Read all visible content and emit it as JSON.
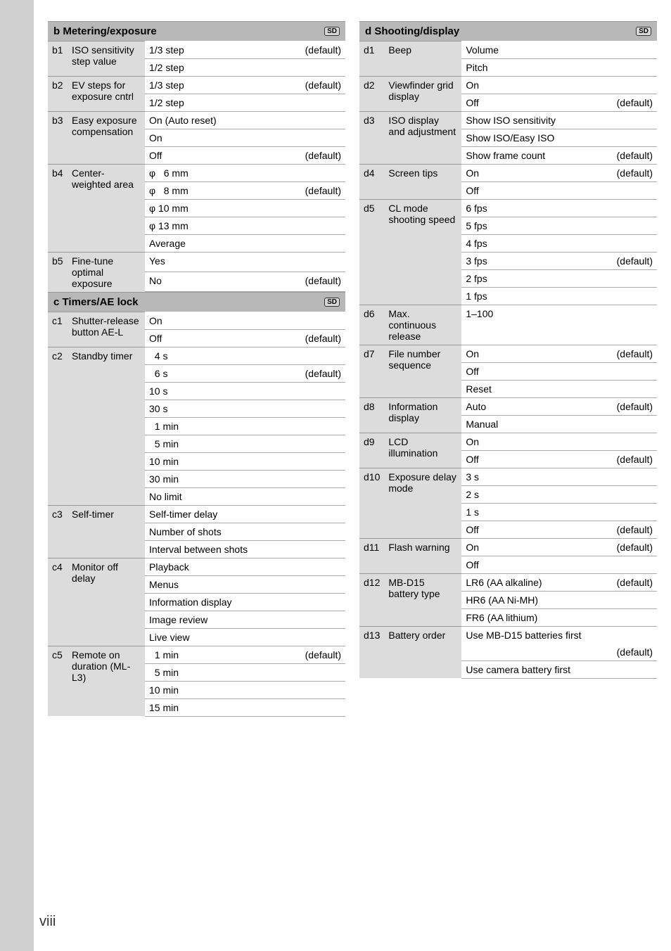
{
  "pageNumber": "viii",
  "left": {
    "b": {
      "header": "b Metering/exposure",
      "groups": [
        {
          "code": "b1",
          "label": "ISO sensitivity step value",
          "rows": [
            {
              "v": "1/3 step",
              "d": "(default)"
            },
            {
              "v": "1/2 step",
              "d": ""
            }
          ]
        },
        {
          "code": "b2",
          "label": "EV steps for exposure cntrl",
          "rows": [
            {
              "v": "1/3 step",
              "d": "(default)"
            },
            {
              "v": "1/2 step",
              "d": ""
            }
          ]
        },
        {
          "code": "b3",
          "label": "Easy exposure compensation",
          "rows": [
            {
              "v": "On (Auto reset)",
              "d": ""
            },
            {
              "v": "On",
              "d": ""
            },
            {
              "v": "Off",
              "d": "(default)"
            }
          ]
        },
        {
          "code": "b4",
          "label": "Center-weighted area",
          "rows": [
            {
              "v": "φ   6 mm",
              "d": ""
            },
            {
              "v": "φ   8 mm",
              "d": "(default)"
            },
            {
              "v": "φ 10 mm",
              "d": ""
            },
            {
              "v": "φ 13 mm",
              "d": ""
            },
            {
              "v": "Average",
              "d": ""
            }
          ]
        },
        {
          "code": "b5",
          "label": "Fine-tune optimal exposure",
          "rows": [
            {
              "v": "Yes",
              "d": ""
            },
            {
              "v": "No",
              "d": "(default)"
            }
          ]
        }
      ]
    },
    "c": {
      "header": "c Timers/AE lock",
      "groups": [
        {
          "code": "c1",
          "label": "Shutter-release button AE-L",
          "rows": [
            {
              "v": "On",
              "d": ""
            },
            {
              "v": "Off",
              "d": "(default)"
            }
          ]
        },
        {
          "code": "c2",
          "label": "Standby timer",
          "rows": [
            {
              "v": "  4 s",
              "d": ""
            },
            {
              "v": "  6 s",
              "d": "(default)"
            },
            {
              "v": "10 s",
              "d": ""
            },
            {
              "v": "30 s",
              "d": ""
            },
            {
              "v": "  1 min",
              "d": ""
            },
            {
              "v": "  5 min",
              "d": ""
            },
            {
              "v": "10 min",
              "d": ""
            },
            {
              "v": "30 min",
              "d": ""
            },
            {
              "v": "No limit",
              "d": ""
            }
          ]
        },
        {
          "code": "c3",
          "label": "Self-timer",
          "rows": [
            {
              "v": "Self-timer delay",
              "d": ""
            },
            {
              "v": "Number of shots",
              "d": ""
            },
            {
              "v": "Interval between shots",
              "d": ""
            }
          ]
        },
        {
          "code": "c4",
          "label": "Monitor off delay",
          "rows": [
            {
              "v": "Playback",
              "d": ""
            },
            {
              "v": "Menus",
              "d": ""
            },
            {
              "v": "Information display",
              "d": ""
            },
            {
              "v": "Image review",
              "d": ""
            },
            {
              "v": "Live view",
              "d": ""
            }
          ]
        },
        {
          "code": "c5",
          "label": "Remote on duration (ML-L3)",
          "rows": [
            {
              "v": "  1 min",
              "d": "(default)"
            },
            {
              "v": "  5 min",
              "d": ""
            },
            {
              "v": "10 min",
              "d": ""
            },
            {
              "v": "15 min",
              "d": ""
            }
          ]
        }
      ]
    }
  },
  "right": {
    "d": {
      "header": "d Shooting/display",
      "groups": [
        {
          "code": "d1",
          "label": "Beep",
          "rows": [
            {
              "v": "Volume",
              "d": ""
            },
            {
              "v": "Pitch",
              "d": ""
            }
          ]
        },
        {
          "code": "d2",
          "label": "Viewfinder grid display",
          "rows": [
            {
              "v": "On",
              "d": ""
            },
            {
              "v": "Off",
              "d": "(default)"
            }
          ]
        },
        {
          "code": "d3",
          "label": "ISO display and adjustment",
          "rows": [
            {
              "v": "Show ISO sensitivity",
              "d": ""
            },
            {
              "v": "Show ISO/Easy ISO",
              "d": ""
            },
            {
              "v": "Show frame count",
              "d": "(default)"
            }
          ]
        },
        {
          "code": "d4",
          "label": "Screen tips",
          "rows": [
            {
              "v": "On",
              "d": "(default)"
            },
            {
              "v": "Off",
              "d": ""
            }
          ]
        },
        {
          "code": "d5",
          "label": "CL mode shooting speed",
          "rows": [
            {
              "v": "6 fps",
              "d": ""
            },
            {
              "v": "5 fps",
              "d": ""
            },
            {
              "v": "4 fps",
              "d": ""
            },
            {
              "v": "3 fps",
              "d": "(default)"
            },
            {
              "v": "2 fps",
              "d": ""
            },
            {
              "v": "1 fps",
              "d": ""
            }
          ]
        },
        {
          "code": "d6",
          "label": "Max. continuous release",
          "rows": [
            {
              "v": "1–100",
              "d": ""
            }
          ]
        },
        {
          "code": "d7",
          "label": "File number sequence",
          "rows": [
            {
              "v": "On",
              "d": "(default)"
            },
            {
              "v": "Off",
              "d": ""
            },
            {
              "v": "Reset",
              "d": ""
            }
          ]
        },
        {
          "code": "d8",
          "label": "Information display",
          "rows": [
            {
              "v": "Auto",
              "d": "(default)"
            },
            {
              "v": "Manual",
              "d": ""
            }
          ]
        },
        {
          "code": "d9",
          "label": "LCD illumination",
          "rows": [
            {
              "v": "On",
              "d": ""
            },
            {
              "v": "Off",
              "d": "(default)"
            }
          ]
        },
        {
          "code": "d10",
          "label": "Exposure delay mode",
          "rows": [
            {
              "v": "3 s",
              "d": ""
            },
            {
              "v": "2 s",
              "d": ""
            },
            {
              "v": "1 s",
              "d": ""
            },
            {
              "v": "Off",
              "d": "(default)"
            }
          ]
        },
        {
          "code": "d11",
          "label": "Flash warning",
          "rows": [
            {
              "v": "On",
              "d": "(default)"
            },
            {
              "v": "Off",
              "d": ""
            }
          ]
        },
        {
          "code": "d12",
          "label": "MB-D15 battery type",
          "rows": [
            {
              "v": "LR6 (AA alkaline)",
              "d": "(default)"
            },
            {
              "v": "HR6 (AA Ni-MH)",
              "d": ""
            },
            {
              "v": "FR6 (AA lithium)",
              "d": ""
            }
          ]
        },
        {
          "code": "d13",
          "label": "Battery order",
          "rows": [
            {
              "v": "Use MB-D15 batteries first",
              "d": "(default)",
              "wrap": true
            },
            {
              "v": "Use camera battery first",
              "d": ""
            }
          ]
        }
      ]
    }
  }
}
